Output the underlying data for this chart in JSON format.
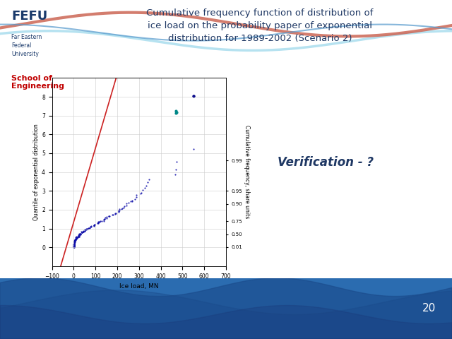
{
  "title": "Cumulative frequency function of distribution of\nice load on the probability paper of exponential\ndistribution for 1989-2002 (Scenario 2)",
  "xlabel": "Ice load, MN",
  "ylabel_left": "Quantile of exponential distribution",
  "ylabel_right": "Cumulative frequency, share units",
  "right_yticks": [
    0.01,
    0.5,
    0.75,
    0.9,
    0.95,
    0.99
  ],
  "right_ytick_labels": [
    "0.01",
    "0.50",
    "0.75",
    "0.90",
    "0.95",
    "0.99"
  ],
  "xlim": [
    -100,
    700
  ],
  "ylim": [
    -1,
    9
  ],
  "xticks": [
    -100,
    0,
    100,
    200,
    300,
    400,
    500,
    600,
    700
  ],
  "yticks": [
    0,
    1,
    2,
    3,
    4,
    5,
    6,
    7,
    8
  ],
  "grid_color": "#cccccc",
  "verification_text": "Verification - ?",
  "background_color": "#ffffff",
  "title_color": "#1f3864",
  "school_color": "#c00000",
  "bottom_bg_color": "#2b6cb0",
  "bottom_wave_dark": "#1a4a8a",
  "page_number": "20",
  "page_num_color": "#ffffff",
  "fefu_color": "#1a3a6b",
  "wave_red": "#cc4444",
  "wave_lightblue": "#aaddee",
  "wave_blue": "#4488bb"
}
